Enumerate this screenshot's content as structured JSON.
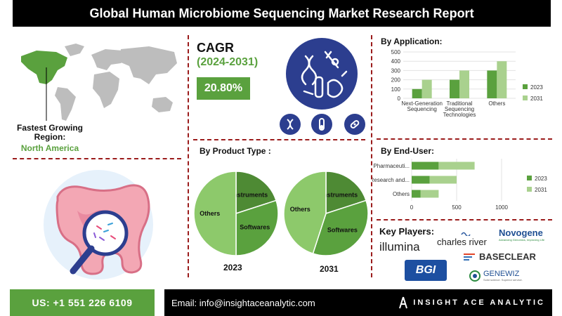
{
  "title": "Global Human Microbiome Sequencing Market Research Report",
  "region": {
    "label": "Fastest Growing Region:",
    "value": "North America"
  },
  "cagr": {
    "title": "CAGR",
    "years": "(2024-2031)",
    "value": "20.80%"
  },
  "application": {
    "title": "By Application:"
  },
  "product_type": {
    "title": "By Product Type :",
    "year_left": "2023",
    "year_right": "2031"
  },
  "end_user": {
    "title": "By End-User:"
  },
  "key_players": {
    "title": "Key Players:",
    "names": [
      "illumina",
      "charles river",
      "Novogene",
      "BASECLEAR",
      "BGI",
      "GENEWIZ"
    ],
    "novogene_tagline": "Advancing Genomics, Improving Life",
    "genewiz_tagline": "Solid science. Superior service."
  },
  "footer": {
    "phone": "US: +1 551 226 6109",
    "email": "Email: info@insightaceanalytic.com",
    "brand": "INSIGHT ACE ANALYTIC"
  },
  "colors": {
    "green": "#5aa13e",
    "light_green": "#a9d18e",
    "dark_green": "#4e8a34",
    "pie_light": "#8dc96b",
    "accent_red": "#9b1c1c",
    "icon_blue": "#2c3e8f"
  },
  "chart_data": [
    {
      "type": "bar",
      "categories": [
        "Next-Generation Sequencing",
        "Traditional Sequencing Technologies",
        "Others"
      ],
      "series": [
        {
          "name": "2023",
          "values": [
            100,
            200,
            300
          ]
        },
        {
          "name": "2031",
          "values": [
            200,
            300,
            400
          ]
        }
      ],
      "ylim": [
        0,
        500
      ],
      "yticks": [
        0,
        100,
        200,
        300,
        400,
        500
      ],
      "legend": "right"
    },
    {
      "type": "bar",
      "orientation": "horizontal",
      "categories": [
        "Pharmaceuti...",
        "Research and...",
        "Others"
      ],
      "series": [
        {
          "name": "2023",
          "values": [
            300,
            200,
            100
          ]
        },
        {
          "name": "2031",
          "values": [
            400,
            300,
            200
          ]
        }
      ],
      "xlim": [
        0,
        1000
      ],
      "xticks": [
        0,
        500,
        1000
      ],
      "stacked": true,
      "legend": "right"
    },
    {
      "type": "pie",
      "year": "2023",
      "slices": [
        {
          "name": "Instruments",
          "value": 20
        },
        {
          "name": "Softwares",
          "value": 30
        },
        {
          "name": "Others",
          "value": 50
        }
      ]
    },
    {
      "type": "pie",
      "year": "2031",
      "slices": [
        {
          "name": "Instruments",
          "value": 20
        },
        {
          "name": "Softwares",
          "value": 35
        },
        {
          "name": "Others",
          "value": 45
        }
      ]
    }
  ]
}
